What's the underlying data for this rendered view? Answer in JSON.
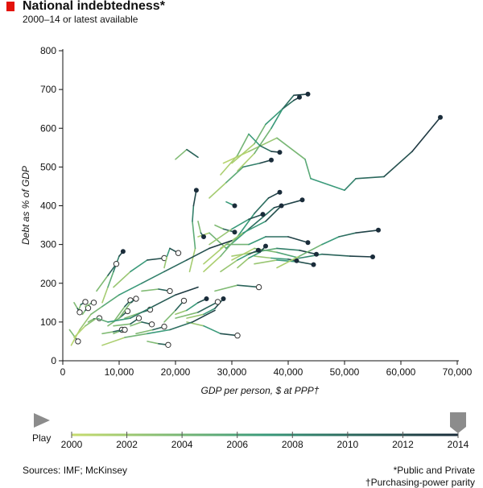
{
  "header": {
    "title": "National indebtedness*",
    "subtitle": "2000–14 or latest available"
  },
  "controls": {
    "play_label": "Play",
    "timeline_years": [
      "2000",
      "2002",
      "2004",
      "2006",
      "2008",
      "2010",
      "2012",
      "2014"
    ],
    "selected_year": "2014"
  },
  "footer": {
    "sources": "Sources: IMF; McKinsey",
    "footnote_1": "*Public and Private",
    "footnote_2": "†Purchasing-power parity"
  },
  "colors": {
    "start": "#c8dc6e",
    "end": "#1a2c3a",
    "accent": "#e3120b",
    "control": "#8c8c8c"
  },
  "chart_data": {
    "type": "scatter",
    "title": "National indebtedness*",
    "subtitle": "2000–14 or latest available",
    "xlabel": "GDP per person, $ at PPP†",
    "ylabel": "Debt as % of GDP",
    "xlim": [
      0,
      70000
    ],
    "ylim": [
      0,
      800
    ],
    "x_ticks": [
      0,
      10000,
      20000,
      30000,
      40000,
      50000,
      60000,
      70000
    ],
    "x_tick_labels": [
      "0",
      "10,000",
      "20,000",
      "30,000",
      "40,000",
      "50,000",
      "60,000",
      "70,000"
    ],
    "y_ticks": [
      0,
      100,
      200,
      300,
      400,
      500,
      600,
      700,
      800
    ],
    "y_tick_labels": [
      "0",
      "100",
      "200",
      "300",
      "400",
      "500",
      "600",
      "700",
      "800"
    ],
    "grid": false,
    "years": [
      2000,
      2014
    ],
    "trails": [
      {
        "end": "latest",
        "points": [
          [
            28500,
            510
          ],
          [
            33000,
            540
          ],
          [
            38000,
            575
          ],
          [
            43000,
            520
          ],
          [
            44000,
            470
          ],
          [
            50000,
            440
          ],
          [
            52000,
            470
          ],
          [
            57000,
            475
          ],
          [
            62000,
            540
          ],
          [
            67000,
            628
          ]
        ]
      },
      {
        "end": "latest",
        "points": [
          [
            30000,
            510
          ],
          [
            34000,
            560
          ],
          [
            36000,
            610
          ],
          [
            39000,
            650
          ],
          [
            41000,
            672
          ],
          [
            42000,
            680
          ]
        ]
      },
      {
        "end": "latest",
        "points": [
          [
            31000,
            490
          ],
          [
            34000,
            535
          ],
          [
            37000,
            600
          ],
          [
            39000,
            650
          ],
          [
            41000,
            685
          ],
          [
            43500,
            688
          ]
        ]
      },
      {
        "end": "latest",
        "points": [
          [
            28000,
            480
          ],
          [
            31000,
            530
          ],
          [
            33000,
            585
          ],
          [
            35000,
            555
          ],
          [
            37000,
            540
          ],
          [
            38500,
            538
          ]
        ]
      },
      {
        "end": "latest",
        "points": [
          [
            26000,
            420
          ],
          [
            29000,
            460
          ],
          [
            32000,
            500
          ],
          [
            35000,
            510
          ],
          [
            37000,
            518
          ]
        ]
      },
      {
        "end": "latest",
        "points": [
          [
            24000,
            320
          ],
          [
            26000,
            330
          ],
          [
            29000,
            290
          ],
          [
            33000,
            340
          ],
          [
            37500,
            395
          ],
          [
            42500,
            415
          ]
        ]
      },
      {
        "end": "latest",
        "points": [
          [
            25000,
            230
          ],
          [
            28000,
            270
          ],
          [
            31000,
            320
          ],
          [
            34000,
            380
          ],
          [
            36500,
            420
          ],
          [
            38500,
            435
          ]
        ]
      },
      {
        "end": "latest",
        "points": [
          [
            29000,
            410
          ],
          [
            30500,
            400
          ]
        ]
      },
      {
        "end": "latest",
        "points": [
          [
            27000,
            350
          ],
          [
            28500,
            340
          ],
          [
            30500,
            332
          ]
        ]
      },
      {
        "end": "latest",
        "points": [
          [
            22500,
            230
          ],
          [
            23500,
            290
          ],
          [
            23000,
            360
          ],
          [
            23200,
            400
          ],
          [
            23700,
            440
          ]
        ]
      },
      {
        "end": "latest",
        "points": [
          [
            24000,
            360
          ],
          [
            24500,
            330
          ],
          [
            25000,
            320
          ]
        ]
      },
      {
        "end": "latest",
        "points": [
          [
            26000,
            300
          ],
          [
            30000,
            340
          ],
          [
            33000,
            365
          ],
          [
            35500,
            378
          ]
        ]
      },
      {
        "end": "latest",
        "points": [
          [
            28000,
            290
          ],
          [
            32000,
            330
          ],
          [
            36000,
            360
          ],
          [
            38800,
            400
          ]
        ]
      },
      {
        "end": "latest",
        "points": [
          [
            25000,
            250
          ],
          [
            29000,
            300
          ],
          [
            33000,
            300
          ],
          [
            36000,
            320
          ],
          [
            40000,
            320
          ],
          [
            43500,
            305
          ]
        ]
      },
      {
        "end": "latest",
        "points": [
          [
            30000,
            260
          ],
          [
            34000,
            290
          ],
          [
            38000,
            280
          ],
          [
            42000,
            265
          ],
          [
            46000,
            275
          ],
          [
            51000,
            270
          ],
          [
            55000,
            268
          ]
        ]
      },
      {
        "end": "latest",
        "points": [
          [
            30000,
            270
          ],
          [
            34000,
            280
          ],
          [
            38000,
            290
          ],
          [
            42000,
            285
          ],
          [
            45000,
            275
          ]
        ]
      },
      {
        "end": "latest",
        "points": [
          [
            34000,
            250
          ],
          [
            38000,
            260
          ],
          [
            42000,
            255
          ],
          [
            44500,
            248
          ]
        ]
      },
      {
        "end": "latest",
        "points": [
          [
            34000,
            270
          ],
          [
            37000,
            265
          ],
          [
            40000,
            262
          ],
          [
            41500,
            258
          ]
        ]
      },
      {
        "end": "latest",
        "points": [
          [
            38000,
            240
          ],
          [
            42000,
            270
          ],
          [
            46000,
            300
          ],
          [
            49000,
            320
          ],
          [
            52000,
            330
          ],
          [
            56000,
            337
          ]
        ]
      },
      {
        "end": "latest",
        "points": [
          [
            31000,
            240
          ],
          [
            33000,
            265
          ],
          [
            35000,
            280
          ],
          [
            36000,
            296
          ]
        ]
      },
      {
        "end": "latest",
        "points": [
          [
            28000,
            230
          ],
          [
            31000,
            260
          ],
          [
            33000,
            275
          ],
          [
            34700,
            285
          ]
        ]
      },
      {
        "end": "latest",
        "points": [
          [
            7000,
            150
          ],
          [
            8000,
            190
          ],
          [
            9000,
            230
          ],
          [
            10000,
            270
          ],
          [
            10700,
            282
          ]
        ]
      },
      {
        "end": "latest",
        "points": [
          [
            20000,
            120
          ],
          [
            22000,
            130
          ],
          [
            24000,
            150
          ],
          [
            25500,
            160
          ]
        ]
      },
      {
        "end": "latest",
        "points": [
          [
            22000,
            110
          ],
          [
            25000,
            120
          ],
          [
            27000,
            135
          ],
          [
            28500,
            160
          ]
        ]
      },
      {
        "end": "earliest",
        "points": [
          [
            9000,
            190
          ],
          [
            12000,
            230
          ],
          [
            15000,
            260
          ],
          [
            18000,
            265
          ]
        ]
      },
      {
        "end": "earliest",
        "points": [
          [
            18000,
            240
          ],
          [
            18500,
            270
          ],
          [
            19000,
            290
          ],
          [
            20500,
            278
          ]
        ]
      },
      {
        "end": "earliest",
        "points": [
          [
            6000,
            180
          ],
          [
            8000,
            220
          ],
          [
            9500,
            250
          ]
        ]
      },
      {
        "end": "earliest",
        "points": [
          [
            14000,
            180
          ],
          [
            17000,
            185
          ],
          [
            19000,
            180
          ]
        ]
      },
      {
        "end": "earliest",
        "points": [
          [
            27000,
            180
          ],
          [
            31000,
            195
          ],
          [
            34800,
            190
          ]
        ]
      },
      {
        "end": "earliest",
        "points": [
          [
            2800,
            130
          ],
          [
            3200,
            145
          ],
          [
            4000,
            152
          ]
        ]
      },
      {
        "end": "earliest",
        "points": [
          [
            2000,
            150
          ],
          [
            2600,
            135
          ],
          [
            3000,
            125
          ]
        ]
      },
      {
        "end": "earliest",
        "points": [
          [
            3500,
            120
          ],
          [
            4000,
            130
          ],
          [
            4500,
            136
          ]
        ]
      },
      {
        "end": "earliest",
        "points": [
          [
            4000,
            140
          ],
          [
            5000,
            148
          ],
          [
            5500,
            150
          ]
        ]
      },
      {
        "end": "earliest",
        "points": [
          [
            4500,
            100
          ],
          [
            5500,
            108
          ],
          [
            6500,
            110
          ]
        ]
      },
      {
        "end": "earliest",
        "points": [
          [
            1200,
            80
          ],
          [
            2200,
            60
          ],
          [
            2700,
            50
          ]
        ]
      },
      {
        "end": "earliest",
        "points": [
          [
            7000,
            70
          ],
          [
            9000,
            75
          ],
          [
            10500,
            80
          ]
        ]
      },
      {
        "end": "earliest",
        "points": [
          [
            8000,
            90
          ],
          [
            10000,
            110
          ],
          [
            11500,
            128
          ]
        ]
      },
      {
        "end": "earliest",
        "points": [
          [
            9000,
            100
          ],
          [
            11000,
            140
          ],
          [
            12000,
            156
          ]
        ]
      },
      {
        "end": "earliest",
        "points": [
          [
            10000,
            110
          ],
          [
            12000,
            150
          ],
          [
            13000,
            160
          ]
        ]
      },
      {
        "end": "earliest",
        "points": [
          [
            9000,
            90
          ],
          [
            12000,
            95
          ],
          [
            13500,
            110
          ]
        ]
      },
      {
        "end": "earliest",
        "points": [
          [
            11000,
            110
          ],
          [
            14000,
            125
          ],
          [
            15500,
            132
          ]
        ]
      },
      {
        "end": "earliest",
        "points": [
          [
            12000,
            90
          ],
          [
            14000,
            100
          ],
          [
            15800,
            94
          ]
        ]
      },
      {
        "end": "earliest",
        "points": [
          [
            13000,
            70
          ],
          [
            16000,
            80
          ],
          [
            18000,
            88
          ]
        ]
      },
      {
        "end": "earliest",
        "points": [
          [
            15000,
            50
          ],
          [
            17000,
            44
          ],
          [
            18700,
            41
          ]
        ]
      },
      {
        "end": "earliest",
        "points": [
          [
            18000,
            100
          ],
          [
            20000,
            130
          ],
          [
            21500,
            155
          ]
        ]
      },
      {
        "end": "earliest",
        "points": [
          [
            20000,
            110
          ],
          [
            24000,
            125
          ],
          [
            27500,
            152
          ]
        ]
      },
      {
        "end": "earliest",
        "points": [
          [
            22000,
            100
          ],
          [
            25000,
            90
          ],
          [
            28000,
            70
          ],
          [
            31000,
            65
          ]
        ]
      },
      {
        "end": "earliest",
        "points": [
          [
            9000,
            70
          ],
          [
            10000,
            76
          ],
          [
            11000,
            80
          ]
        ]
      },
      {
        "end": "none",
        "points": [
          [
            1500,
            40
          ],
          [
            3000,
            80
          ],
          [
            5000,
            120
          ],
          [
            7000,
            140
          ],
          [
            10000,
            170
          ],
          [
            14000,
            200
          ],
          [
            18000,
            230
          ],
          [
            22000,
            260
          ],
          [
            26000,
            290
          ],
          [
            30000,
            310
          ]
        ]
      },
      {
        "end": "none",
        "points": [
          [
            2000,
            60
          ],
          [
            4000,
            90
          ],
          [
            6000,
            110
          ],
          [
            8000,
            100
          ],
          [
            12000,
            110
          ],
          [
            16000,
            140
          ],
          [
            20000,
            170
          ],
          [
            24000,
            190
          ]
        ]
      },
      {
        "end": "none",
        "points": [
          [
            20000,
            520
          ],
          [
            22000,
            545
          ],
          [
            24000,
            525
          ]
        ]
      },
      {
        "end": "none",
        "points": [
          [
            7000,
            40
          ],
          [
            11000,
            60
          ],
          [
            15000,
            70
          ],
          [
            19000,
            80
          ],
          [
            23000,
            100
          ],
          [
            27000,
            130
          ]
        ]
      }
    ]
  }
}
